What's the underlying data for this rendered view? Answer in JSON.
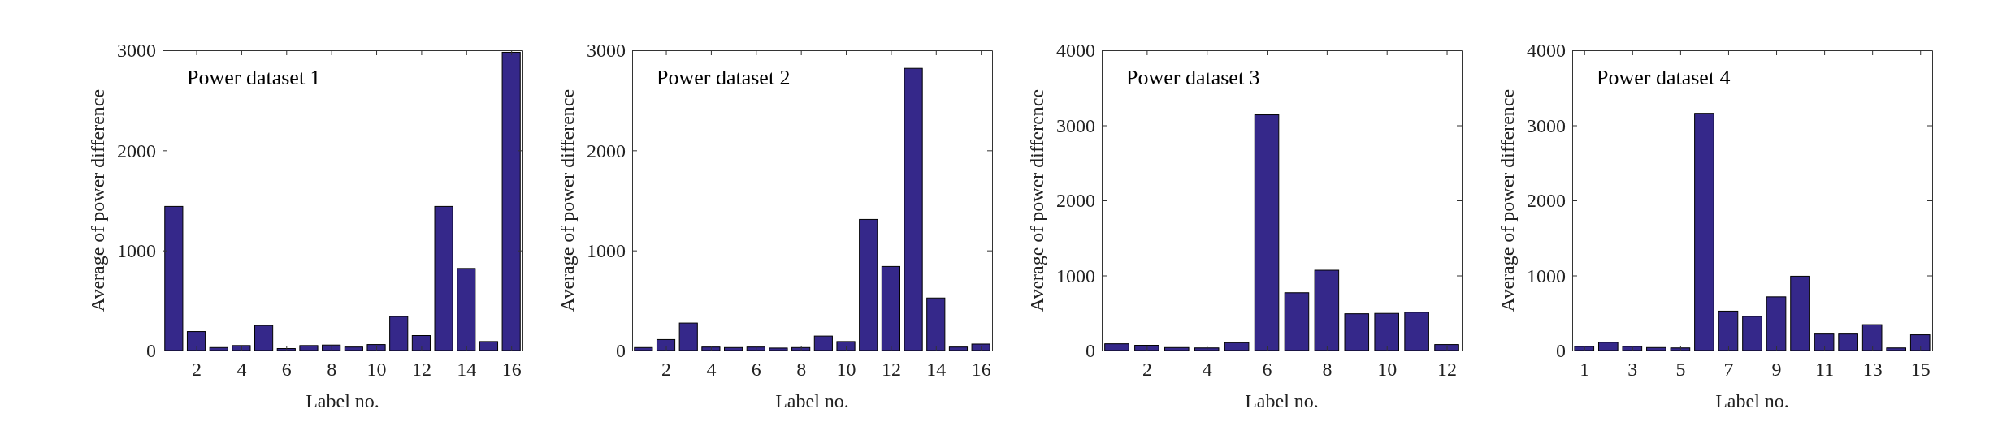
{
  "chart_data": [
    {
      "type": "bar",
      "title": "Power dataset 1",
      "xlabel": "Label no.",
      "ylabel": "Average of power difference",
      "color": "#35288a",
      "x": [
        1,
        2,
        3,
        4,
        5,
        6,
        7,
        8,
        9,
        10,
        11,
        12,
        13,
        14,
        15,
        16
      ],
      "values": [
        1440,
        190,
        30,
        50,
        250,
        20,
        50,
        55,
        35,
        60,
        340,
        150,
        1440,
        820,
        90,
        2980
      ],
      "xlim": [
        0.5,
        16.5
      ],
      "xticks": [
        2,
        4,
        6,
        8,
        10,
        12,
        14,
        16
      ],
      "ylim": [
        0,
        3000
      ],
      "yticks": [
        0,
        1000,
        2000,
        3000
      ]
    },
    {
      "type": "bar",
      "title": "Power dataset 2",
      "xlabel": "Label no.",
      "ylabel": "Average of power difference",
      "color": "#35288a",
      "x": [
        1,
        2,
        3,
        4,
        5,
        6,
        7,
        8,
        9,
        10,
        11,
        12,
        13,
        14,
        15,
        16
      ],
      "values": [
        30,
        110,
        275,
        35,
        30,
        35,
        25,
        30,
        145,
        90,
        1310,
        840,
        2820,
        525,
        35,
        65
      ],
      "xlim": [
        0.5,
        16.5
      ],
      "xticks": [
        2,
        4,
        6,
        8,
        10,
        12,
        14,
        16
      ],
      "ylim": [
        0,
        3000
      ],
      "yticks": [
        0,
        1000,
        2000,
        3000
      ]
    },
    {
      "type": "bar",
      "title": "Power dataset 3",
      "xlabel": "Label no.",
      "ylabel": "Average of power difference",
      "color": "#35288a",
      "x": [
        1,
        2,
        3,
        4,
        5,
        6,
        7,
        8,
        9,
        10,
        11,
        12
      ],
      "values": [
        90,
        70,
        40,
        35,
        105,
        3140,
        770,
        1070,
        490,
        495,
        510,
        80
      ],
      "xlim": [
        0.5,
        12.5
      ],
      "xticks": [
        2,
        4,
        6,
        8,
        10,
        12
      ],
      "ylim": [
        0,
        4000
      ],
      "yticks": [
        0,
        1000,
        2000,
        3000,
        4000
      ]
    },
    {
      "type": "bar",
      "title": "Power dataset 4",
      "xlabel": "Label no.",
      "ylabel": "Average of power difference",
      "color": "#35288a",
      "x": [
        1,
        2,
        3,
        4,
        5,
        6,
        7,
        8,
        9,
        10,
        11,
        12,
        13,
        14,
        15
      ],
      "values": [
        55,
        110,
        55,
        40,
        35,
        3160,
        525,
        455,
        715,
        990,
        220,
        220,
        345,
        35,
        210
      ],
      "xlim": [
        0.5,
        15.5
      ],
      "xticks": [
        1,
        3,
        5,
        7,
        9,
        11,
        13,
        15
      ],
      "ylim": [
        0,
        4000
      ],
      "yticks": [
        0,
        1000,
        2000,
        3000,
        4000
      ]
    }
  ]
}
